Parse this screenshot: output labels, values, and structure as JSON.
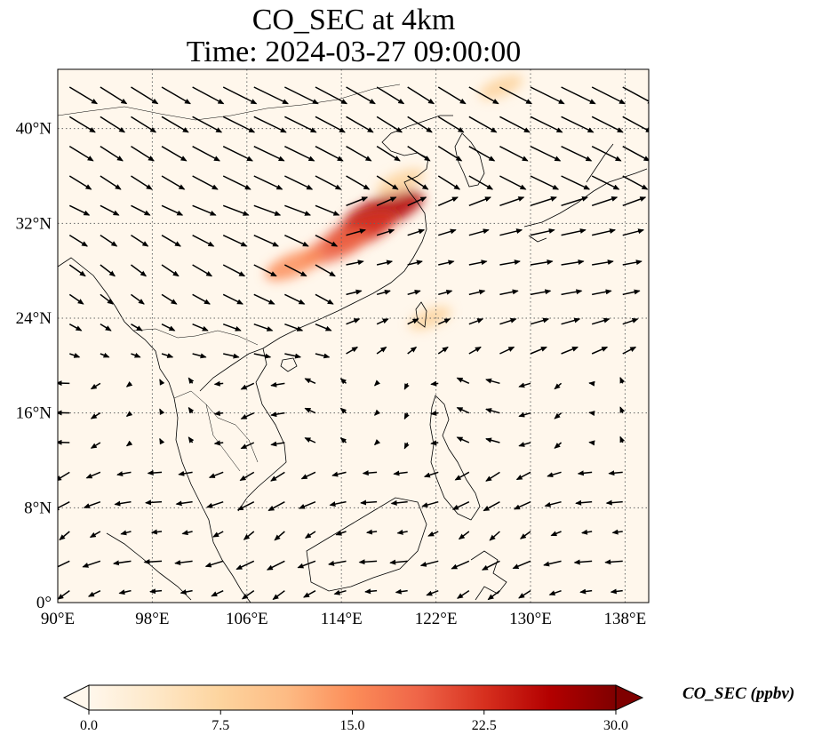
{
  "title": {
    "line1": "CO_SEC at 4km",
    "line2": "Time: 2024-03-27 09:00:00"
  },
  "map": {
    "variable": "CO_SEC",
    "level": "4km",
    "extent": {
      "lon": [
        90,
        140
      ],
      "lat": [
        0,
        45
      ]
    },
    "lon_ticks": [
      "90°E",
      "98°E",
      "106°E",
      "114°E",
      "122°E",
      "130°E",
      "138°E"
    ],
    "lat_ticks": [
      "0°",
      "8°N",
      "16°N",
      "24°N",
      "32°N",
      "40°N"
    ],
    "gridlines": "dotted",
    "field_description_hotspots": [
      {
        "lon": 117.5,
        "lat": 33.0,
        "value": 26
      },
      {
        "lon": 115.5,
        "lat": 31.3,
        "value": 22
      },
      {
        "lon": 113.5,
        "lat": 30.0,
        "value": 18
      },
      {
        "lon": 110.0,
        "lat": 28.5,
        "value": 14
      },
      {
        "lon": 119.0,
        "lat": 35.5,
        "value": 9
      },
      {
        "lon": 127.5,
        "lat": 43.5,
        "value": 7
      },
      {
        "lon": 121.5,
        "lat": 24.0,
        "value": 6
      }
    ]
  },
  "colorbar": {
    "colormap": "OrRd",
    "colors": [
      "#fff7ec",
      "#fee8c8",
      "#fdd49e",
      "#fdbb84",
      "#fc8d59",
      "#ef6548",
      "#d7301f",
      "#b30000",
      "#7f0000"
    ],
    "min": 0.0,
    "max": 30.0,
    "ticks": [
      "0.0",
      "7.5",
      "15.0",
      "22.5",
      "30.0"
    ],
    "label": "CO_SEC (ppbv)",
    "extend": "both"
  }
}
